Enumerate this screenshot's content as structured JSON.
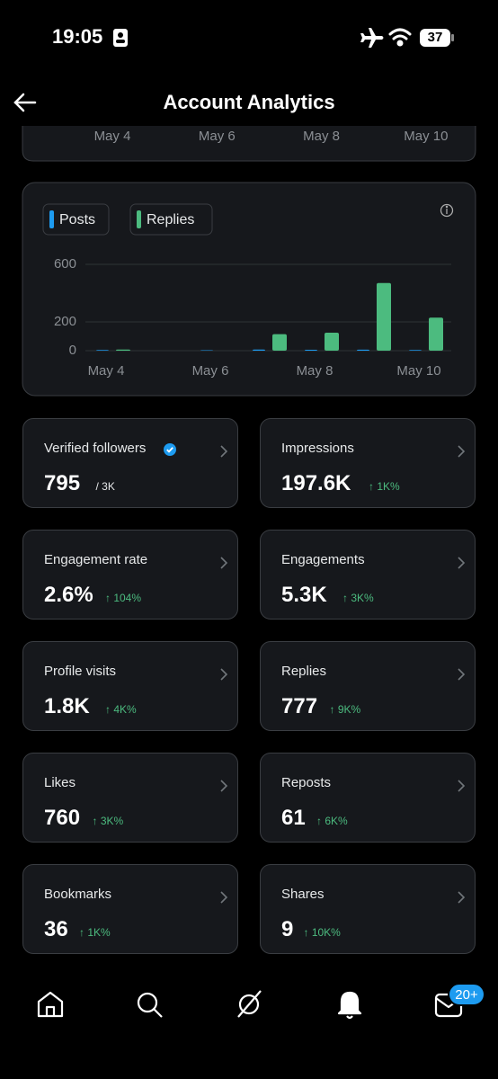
{
  "status_bar": {
    "time": "19:05",
    "battery": "37"
  },
  "header": {
    "title": "Account Analytics"
  },
  "previous_chart": {
    "x_labels": [
      "May 4",
      "May 6",
      "May 8",
      "May 10"
    ]
  },
  "chart_data": {
    "type": "bar",
    "categories": [
      "May 4",
      null,
      "May 6",
      null,
      "May 8",
      null,
      "May 10"
    ],
    "series": [
      {
        "name": "Posts",
        "color": "#1d9bf0",
        "values": [
          5,
          0,
          3,
          8,
          6,
          7,
          5
        ]
      },
      {
        "name": "Replies",
        "color": "#4cbb7f",
        "values": [
          8,
          0,
          0,
          115,
          125,
          470,
          230
        ]
      }
    ],
    "ylim": [
      0,
      600
    ],
    "yticks": [
      0,
      200,
      600
    ],
    "grid": true
  },
  "metrics": [
    {
      "label": "Verified followers",
      "value": "795",
      "total": "/ 3K"
    },
    {
      "label": "Impressions",
      "value": "197.6K",
      "change": "↑ 1K%"
    },
    {
      "label": "Engagement rate",
      "value": "2.6%",
      "change": "↑ 104%"
    },
    {
      "label": "Engagements",
      "value": "5.3K",
      "change": "↑ 3K%"
    },
    {
      "label": "Profile visits",
      "value": "1.8K",
      "change": "↑ 4K%"
    },
    {
      "label": "Replies",
      "value": "777",
      "change": "↑ 9K%"
    },
    {
      "label": "Likes",
      "value": "760",
      "change": "↑ 3K%"
    },
    {
      "label": "Reposts",
      "value": "61",
      "change": "↑ 6K%"
    },
    {
      "label": "Bookmarks",
      "value": "36",
      "change": "↑ 1K%"
    },
    {
      "label": "Shares",
      "value": "9",
      "change": "↑ 10K%"
    }
  ],
  "nav": {
    "messages_badge": "20+"
  }
}
